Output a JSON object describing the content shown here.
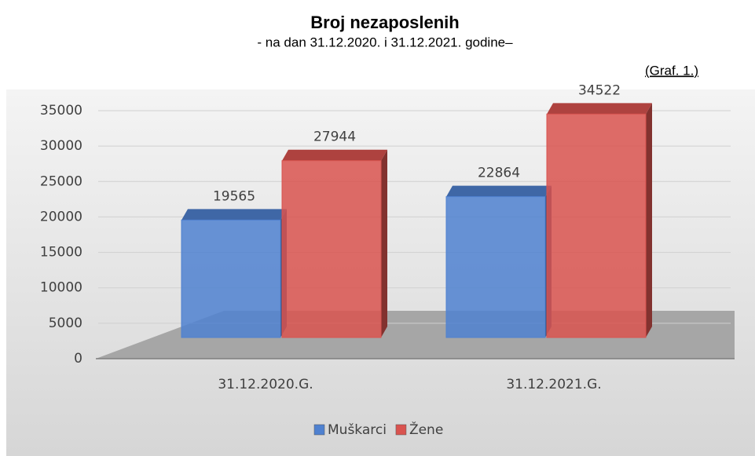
{
  "chart_data": {
    "type": "bar3d",
    "title": "Broj nezaposlenih",
    "subtitle": "- na dan 31.12.2020. i 31.12.2021. godine–",
    "note": "(Graf. 1.)",
    "categories": [
      "31.12.2020.G.",
      "31.12.2021.G."
    ],
    "series": [
      {
        "name": "Muškarci",
        "color": "#4f81d0",
        "values": [
          19565,
          22864
        ]
      },
      {
        "name": "Žene",
        "color": "#d9534f",
        "values": [
          27944,
          34522
        ]
      }
    ],
    "ylim": [
      0,
      35000
    ],
    "yticks": [
      0,
      5000,
      10000,
      15000,
      20000,
      25000,
      30000,
      35000
    ],
    "grid": true,
    "legend": "bottom"
  }
}
